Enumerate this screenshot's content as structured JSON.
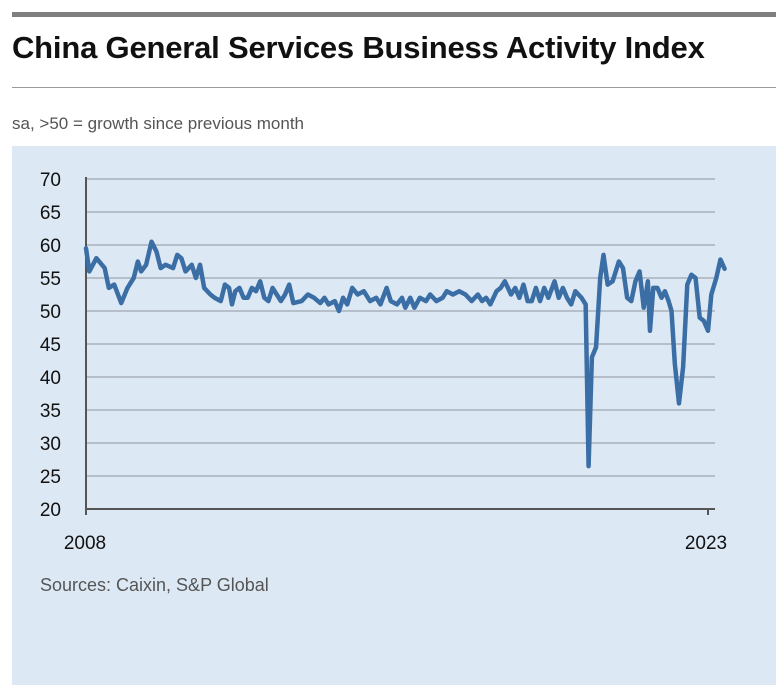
{
  "header": {
    "title": "China General Services Business Activity Index",
    "subtitle": "sa, >50 = growth since previous month"
  },
  "footer": {
    "sources": "Sources: Caixin, S&P Global"
  },
  "colors": {
    "line": "#3a6ea5",
    "panel": "#dde8f5",
    "grid": "#b5bec9",
    "axis": "#555555"
  },
  "chart_data": {
    "type": "line",
    "title": "China General Services Business Activity Index",
    "subtitle": "sa, >50 = growth since previous month",
    "xlabel": "",
    "ylabel": "",
    "x_start": 2008,
    "x_end": 2023,
    "x_tick_labels": [
      "2008",
      "2023"
    ],
    "y_ticks": [
      20,
      25,
      30,
      35,
      40,
      45,
      50,
      55,
      60,
      65,
      70
    ],
    "ylim": [
      20,
      70
    ],
    "grid": true,
    "series": [
      {
        "name": "China General Services Business Activity Index",
        "points": [
          [
            2008.0,
            59.5
          ],
          [
            2008.08,
            56.0
          ],
          [
            2008.25,
            58.0
          ],
          [
            2008.45,
            56.5
          ],
          [
            2008.55,
            53.5
          ],
          [
            2008.68,
            54.0
          ],
          [
            2008.85,
            51.2
          ],
          [
            2009.0,
            53.5
          ],
          [
            2009.15,
            55.0
          ],
          [
            2009.25,
            57.5
          ],
          [
            2009.33,
            56.0
          ],
          [
            2009.45,
            57.0
          ],
          [
            2009.58,
            60.5
          ],
          [
            2009.7,
            59.0
          ],
          [
            2009.8,
            56.5
          ],
          [
            2009.92,
            57.0
          ],
          [
            2010.1,
            56.5
          ],
          [
            2010.2,
            58.5
          ],
          [
            2010.3,
            58.0
          ],
          [
            2010.4,
            56.0
          ],
          [
            2010.55,
            57.0
          ],
          [
            2010.65,
            55.0
          ],
          [
            2010.75,
            57.0
          ],
          [
            2010.85,
            53.5
          ],
          [
            2011.0,
            52.5
          ],
          [
            2011.1,
            52.0
          ],
          [
            2011.25,
            51.5
          ],
          [
            2011.35,
            54.0
          ],
          [
            2011.45,
            53.5
          ],
          [
            2011.52,
            51.0
          ],
          [
            2011.6,
            53.0
          ],
          [
            2011.7,
            53.5
          ],
          [
            2011.8,
            52.0
          ],
          [
            2011.9,
            52.0
          ],
          [
            2012.0,
            53.5
          ],
          [
            2012.1,
            53.0
          ],
          [
            2012.2,
            54.5
          ],
          [
            2012.3,
            52.0
          ],
          [
            2012.4,
            51.5
          ],
          [
            2012.5,
            53.5
          ],
          [
            2012.6,
            52.5
          ],
          [
            2012.7,
            51.5
          ],
          [
            2012.8,
            52.5
          ],
          [
            2012.9,
            54.0
          ],
          [
            2013.0,
            51.2
          ],
          [
            2013.2,
            51.5
          ],
          [
            2013.35,
            52.5
          ],
          [
            2013.5,
            52.0
          ],
          [
            2013.65,
            51.2
          ],
          [
            2013.75,
            52.0
          ],
          [
            2013.85,
            51.0
          ],
          [
            2014.0,
            51.5
          ],
          [
            2014.1,
            50.0
          ],
          [
            2014.2,
            52.0
          ],
          [
            2014.3,
            51.0
          ],
          [
            2014.42,
            53.5
          ],
          [
            2014.55,
            52.5
          ],
          [
            2014.7,
            53.0
          ],
          [
            2014.85,
            51.5
          ],
          [
            2015.0,
            52.0
          ],
          [
            2015.1,
            51.0
          ],
          [
            2015.25,
            53.5
          ],
          [
            2015.35,
            51.5
          ],
          [
            2015.5,
            51.0
          ],
          [
            2015.62,
            52.0
          ],
          [
            2015.7,
            50.5
          ],
          [
            2015.82,
            52.0
          ],
          [
            2015.92,
            50.5
          ],
          [
            2016.05,
            52.0
          ],
          [
            2016.2,
            51.5
          ],
          [
            2016.3,
            52.5
          ],
          [
            2016.45,
            51.5
          ],
          [
            2016.6,
            52.0
          ],
          [
            2016.7,
            53.0
          ],
          [
            2016.85,
            52.5
          ],
          [
            2017.0,
            53.0
          ],
          [
            2017.15,
            52.5
          ],
          [
            2017.3,
            51.5
          ],
          [
            2017.45,
            52.5
          ],
          [
            2017.55,
            51.5
          ],
          [
            2017.65,
            52.0
          ],
          [
            2017.75,
            51.0
          ],
          [
            2017.9,
            53.0
          ],
          [
            2018.0,
            53.5
          ],
          [
            2018.1,
            54.5
          ],
          [
            2018.25,
            52.5
          ],
          [
            2018.35,
            53.5
          ],
          [
            2018.45,
            52.0
          ],
          [
            2018.55,
            54.0
          ],
          [
            2018.65,
            51.5
          ],
          [
            2018.75,
            51.5
          ],
          [
            2018.85,
            53.5
          ],
          [
            2018.95,
            51.5
          ],
          [
            2019.05,
            53.5
          ],
          [
            2019.15,
            52.0
          ],
          [
            2019.3,
            54.5
          ],
          [
            2019.4,
            52.0
          ],
          [
            2019.5,
            53.5
          ],
          [
            2019.6,
            52.0
          ],
          [
            2019.7,
            51.0
          ],
          [
            2019.8,
            53.0
          ],
          [
            2019.95,
            52.0
          ],
          [
            2020.05,
            51.0
          ],
          [
            2020.12,
            26.5
          ],
          [
            2020.2,
            43.0
          ],
          [
            2020.3,
            44.5
          ],
          [
            2020.4,
            55.0
          ],
          [
            2020.48,
            58.5
          ],
          [
            2020.58,
            54.0
          ],
          [
            2020.7,
            54.5
          ],
          [
            2020.85,
            57.5
          ],
          [
            2020.95,
            56.5
          ],
          [
            2021.05,
            52.0
          ],
          [
            2021.15,
            51.5
          ],
          [
            2021.25,
            54.5
          ],
          [
            2021.35,
            56.0
          ],
          [
            2021.45,
            50.5
          ],
          [
            2021.55,
            54.5
          ],
          [
            2021.6,
            47.0
          ],
          [
            2021.68,
            53.5
          ],
          [
            2021.78,
            53.5
          ],
          [
            2021.88,
            52.0
          ],
          [
            2021.96,
            53.0
          ],
          [
            2022.05,
            51.5
          ],
          [
            2022.12,
            50.0
          ],
          [
            2022.2,
            42.0
          ],
          [
            2022.3,
            36.0
          ],
          [
            2022.4,
            41.5
          ],
          [
            2022.5,
            54.0
          ],
          [
            2022.6,
            55.5
          ],
          [
            2022.7,
            55.0
          ],
          [
            2022.8,
            49.0
          ],
          [
            2022.9,
            48.5
          ],
          [
            2023.0,
            47.0
          ],
          [
            2023.08,
            52.5
          ],
          [
            2023.2,
            55.0
          ],
          [
            2023.3,
            57.8
          ],
          [
            2023.4,
            56.4
          ]
        ]
      }
    ]
  }
}
